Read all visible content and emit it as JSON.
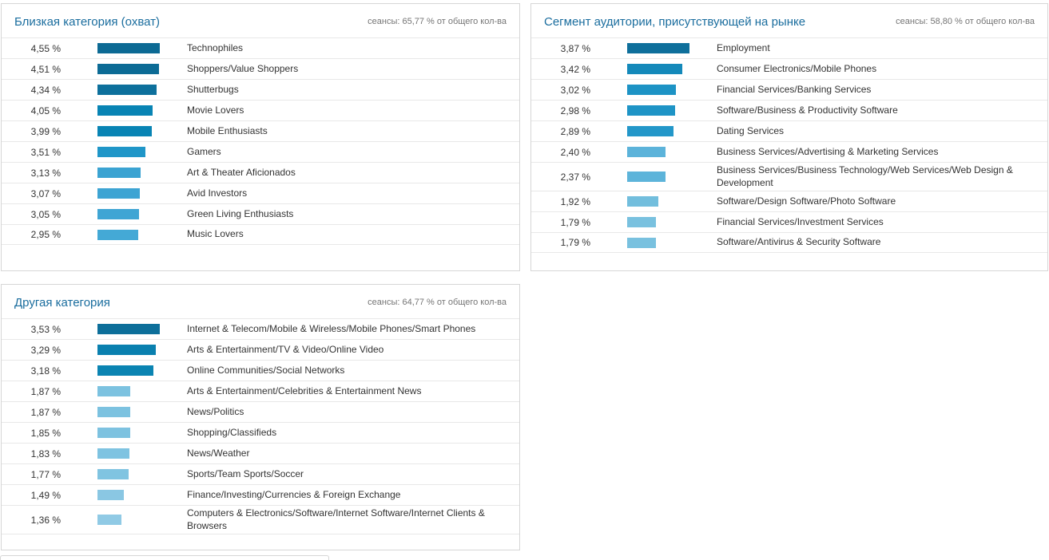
{
  "colors": {
    "title": "#1a6d9e",
    "subtitle": "#757575",
    "text": "#333333",
    "separator": "#e8e8e8",
    "panel_border": "#d6d6d6",
    "bar_dark": "#0c6a94",
    "bar_light": "#90cae5"
  },
  "chart_data": [
    {
      "type": "bar",
      "orientation": "horizontal",
      "title": "Близкая категория (охват)",
      "subtitle": "сеансы: 65,77 % от общего кол-ва",
      "xlim": [
        0,
        4.55
      ],
      "categories": [
        "Technophiles",
        "Shoppers/Value Shoppers",
        "Shutterbugs",
        "Movie Lovers",
        "Mobile Enthusiasts",
        "Gamers",
        "Art & Theater Aficionados",
        "Avid Investors",
        "Green Living Enthusiasts",
        "Music Lovers"
      ],
      "values": [
        4.55,
        4.51,
        4.34,
        4.05,
        3.99,
        3.51,
        3.13,
        3.07,
        3.05,
        2.95
      ],
      "value_labels": [
        "4,55 %",
        "4,51 %",
        "4,34 %",
        "4,05 %",
        "3,99 %",
        "3,51 %",
        "3,13 %",
        "3,07 %",
        "3,05 %",
        "2,95 %"
      ],
      "bar_colors": [
        "#0c6a94",
        "#0c6b95",
        "#0d709c",
        "#0884b4",
        "#0884b4",
        "#1f96c8",
        "#3ba3d2",
        "#3da4d3",
        "#3fa5d4",
        "#44a9d6"
      ]
    },
    {
      "type": "bar",
      "orientation": "horizontal",
      "title": "Сегмент аудитории, присутствующей на рынке",
      "subtitle": "сеансы: 58,80 % от общего кол-ва",
      "xlim": [
        0,
        3.87
      ],
      "categories": [
        "Employment",
        "Consumer Electronics/Mobile Phones",
        "Financial Services/Banking Services",
        "Software/Business & Productivity Software",
        "Dating Services",
        "Business Services/Advertising & Marketing Services",
        "Business Services/Business Technology/Web Services/Web Design & Development",
        "Software/Design Software/Photo Software",
        "Financial Services/Investment Services",
        "Software/Antivirus & Security Software"
      ],
      "values": [
        3.87,
        3.42,
        3.02,
        2.98,
        2.89,
        2.4,
        2.37,
        1.92,
        1.79,
        1.79
      ],
      "value_labels": [
        "3,87 %",
        "3,42 %",
        "3,02 %",
        "2,98 %",
        "2,89 %",
        "2,40 %",
        "2,37 %",
        "1,92 %",
        "1,79 %",
        "1,79 %"
      ],
      "bar_colors": [
        "#0e6f9b",
        "#1489ba",
        "#1d93c5",
        "#1e94c6",
        "#2397c9",
        "#5cb3da",
        "#5db4da",
        "#72bedd",
        "#79c1df",
        "#79c1df"
      ]
    },
    {
      "type": "bar",
      "orientation": "horizontal",
      "title": "Другая категория",
      "subtitle": "сеансы: 64,77 % от общего кол-ва",
      "xlim": [
        0,
        3.53
      ],
      "categories": [
        "Internet & Telecom/Mobile & Wireless/Mobile Phones/Smart Phones",
        "Arts & Entertainment/TV & Video/Online Video",
        "Online Communities/Social Networks",
        "Arts & Entertainment/Celebrities & Entertainment News",
        "News/Politics",
        "Shopping/Classifieds",
        "News/Weather",
        "Sports/Team Sports/Soccer",
        "Finance/Investing/Currencies & Foreign Exchange",
        "Computers & Electronics/Software/Internet Software/Internet Clients & Browsers"
      ],
      "values": [
        3.53,
        3.29,
        3.18,
        1.87,
        1.87,
        1.85,
        1.83,
        1.77,
        1.49,
        1.36
      ],
      "value_labels": [
        "3,53 %",
        "3,29 %",
        "3,18 %",
        "1,87 %",
        "1,87 %",
        "1,85 %",
        "1,83 %",
        "1,77 %",
        "1,49 %",
        "1,36 %"
      ],
      "bar_colors": [
        "#0d6f9a",
        "#0a80af",
        "#0b84b2",
        "#7cc2e0",
        "#7cc2e0",
        "#7dc2e0",
        "#7ec3e1",
        "#80c4e1",
        "#8ac7e3",
        "#90cae5"
      ]
    }
  ]
}
